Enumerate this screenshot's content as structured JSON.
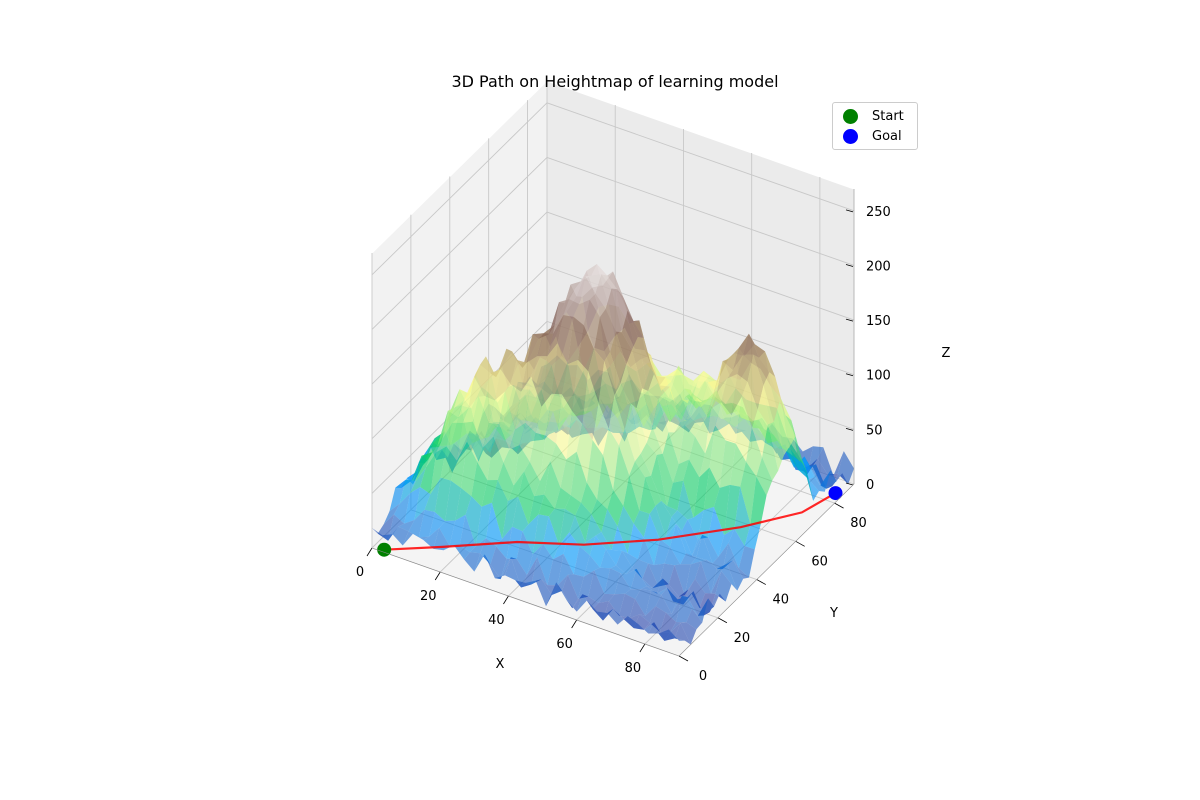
{
  "chart_data": {
    "type": "surface3d",
    "title": "3D Path on Heightmap of learning model",
    "xlabel": "X",
    "ylabel": "Y",
    "zlabel": "Z",
    "xlim": [
      0,
      90
    ],
    "ylim": [
      0,
      90
    ],
    "zlim": [
      0,
      270
    ],
    "xticks": [
      0,
      20,
      40,
      60,
      80
    ],
    "yticks": [
      0,
      20,
      40,
      60,
      80
    ],
    "zticks": [
      0,
      50,
      100,
      150,
      200,
      250
    ],
    "colormap": "terrain",
    "legend_position": "top-right",
    "legend": [
      {
        "label": "Start",
        "color": "#008000"
      },
      {
        "label": "Goal",
        "color": "#0000ff"
      }
    ],
    "peaks": [
      {
        "x": 43,
        "y": 38,
        "height": 220,
        "spread": 13
      },
      {
        "x": 18,
        "y": 22,
        "height": 110,
        "spread": 10
      },
      {
        "x": 80,
        "y": 55,
        "height": 150,
        "spread": 9
      },
      {
        "x": 60,
        "y": 65,
        "height": 70,
        "spread": 12
      }
    ],
    "path": {
      "color": "#ff0000",
      "points": [
        {
          "x": 3,
          "y": 1,
          "z": 0
        },
        {
          "x": 15,
          "y": 10,
          "z": 0
        },
        {
          "x": 30,
          "y": 22,
          "z": 0
        },
        {
          "x": 45,
          "y": 30,
          "z": 0
        },
        {
          "x": 60,
          "y": 42,
          "z": 0
        },
        {
          "x": 75,
          "y": 58,
          "z": 0
        },
        {
          "x": 85,
          "y": 72,
          "z": 0
        },
        {
          "x": 88,
          "y": 84,
          "z": 0
        }
      ]
    },
    "start": {
      "x": 3,
      "y": 1,
      "z": 0,
      "label": "Start"
    },
    "goal": {
      "x": 88,
      "y": 84,
      "z": 0,
      "label": "Goal"
    }
  }
}
